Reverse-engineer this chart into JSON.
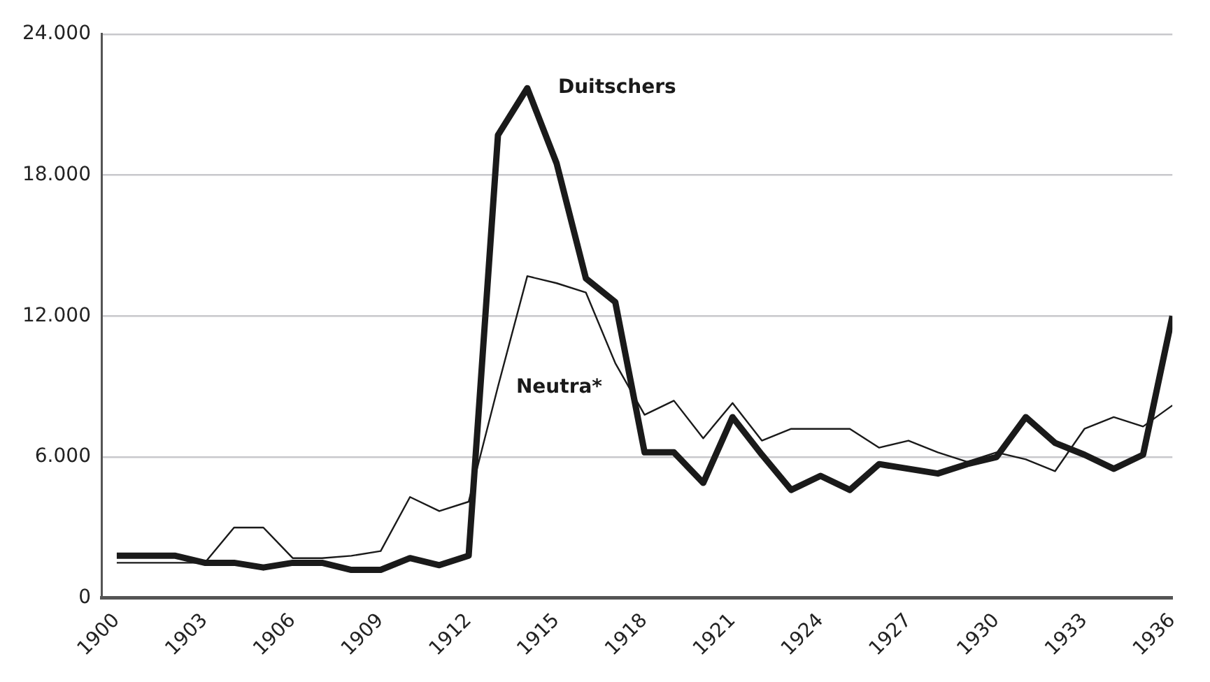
{
  "chart_data": {
    "type": "line",
    "x": [
      1900,
      1901,
      1902,
      1903,
      1904,
      1905,
      1906,
      1907,
      1908,
      1909,
      1910,
      1911,
      1912,
      1913,
      1914,
      1915,
      1916,
      1917,
      1918,
      1919,
      1920,
      1921,
      1922,
      1923,
      1924,
      1925,
      1926,
      1927,
      1928,
      1929,
      1930,
      1931,
      1932,
      1933,
      1934,
      1935,
      1936
    ],
    "series": [
      {
        "name": "Duitschers",
        "color": "#1a1a1a",
        "values": [
          1800,
          1800,
          1800,
          1500,
          1500,
          1300,
          1500,
          1500,
          1200,
          1200,
          1700,
          1400,
          1800,
          19700,
          21700,
          18500,
          13600,
          12600,
          6200,
          6200,
          4900,
          7700,
          6100,
          4600,
          5200,
          4600,
          5700,
          5500,
          5300,
          5700,
          6000,
          7700,
          6600,
          6100,
          5500,
          6100,
          12000
        ]
      },
      {
        "name": "Neutra*",
        "color": "#1a1a1a",
        "values": [
          1500,
          1500,
          1500,
          1500,
          3000,
          3000,
          1700,
          1700,
          1800,
          2000,
          4300,
          3700,
          4100,
          9000,
          13700,
          13400,
          13000,
          10000,
          7800,
          8400,
          6800,
          8300,
          6700,
          7200,
          7200,
          7200,
          6400,
          6700,
          6200,
          5800,
          6200,
          5900,
          5400,
          7200,
          7700,
          7300,
          8200
        ]
      }
    ],
    "xlim": [
      1899.5,
      1936
    ],
    "xticks": [
      1900,
      1903,
      1906,
      1909,
      1912,
      1915,
      1918,
      1921,
      1924,
      1927,
      1930,
      1933,
      1936
    ],
    "ylim": [
      0,
      24000
    ],
    "yticks": [
      0,
      {
        "value": 6000,
        "label": "6.000"
      },
      {
        "value": 12000,
        "label": "12.000"
      },
      {
        "value": 18000,
        "label": "18.000"
      },
      {
        "value": 24000,
        "label": "24.000"
      }
    ],
    "grid": "y",
    "marker": "none",
    "line_style": "solid"
  }
}
